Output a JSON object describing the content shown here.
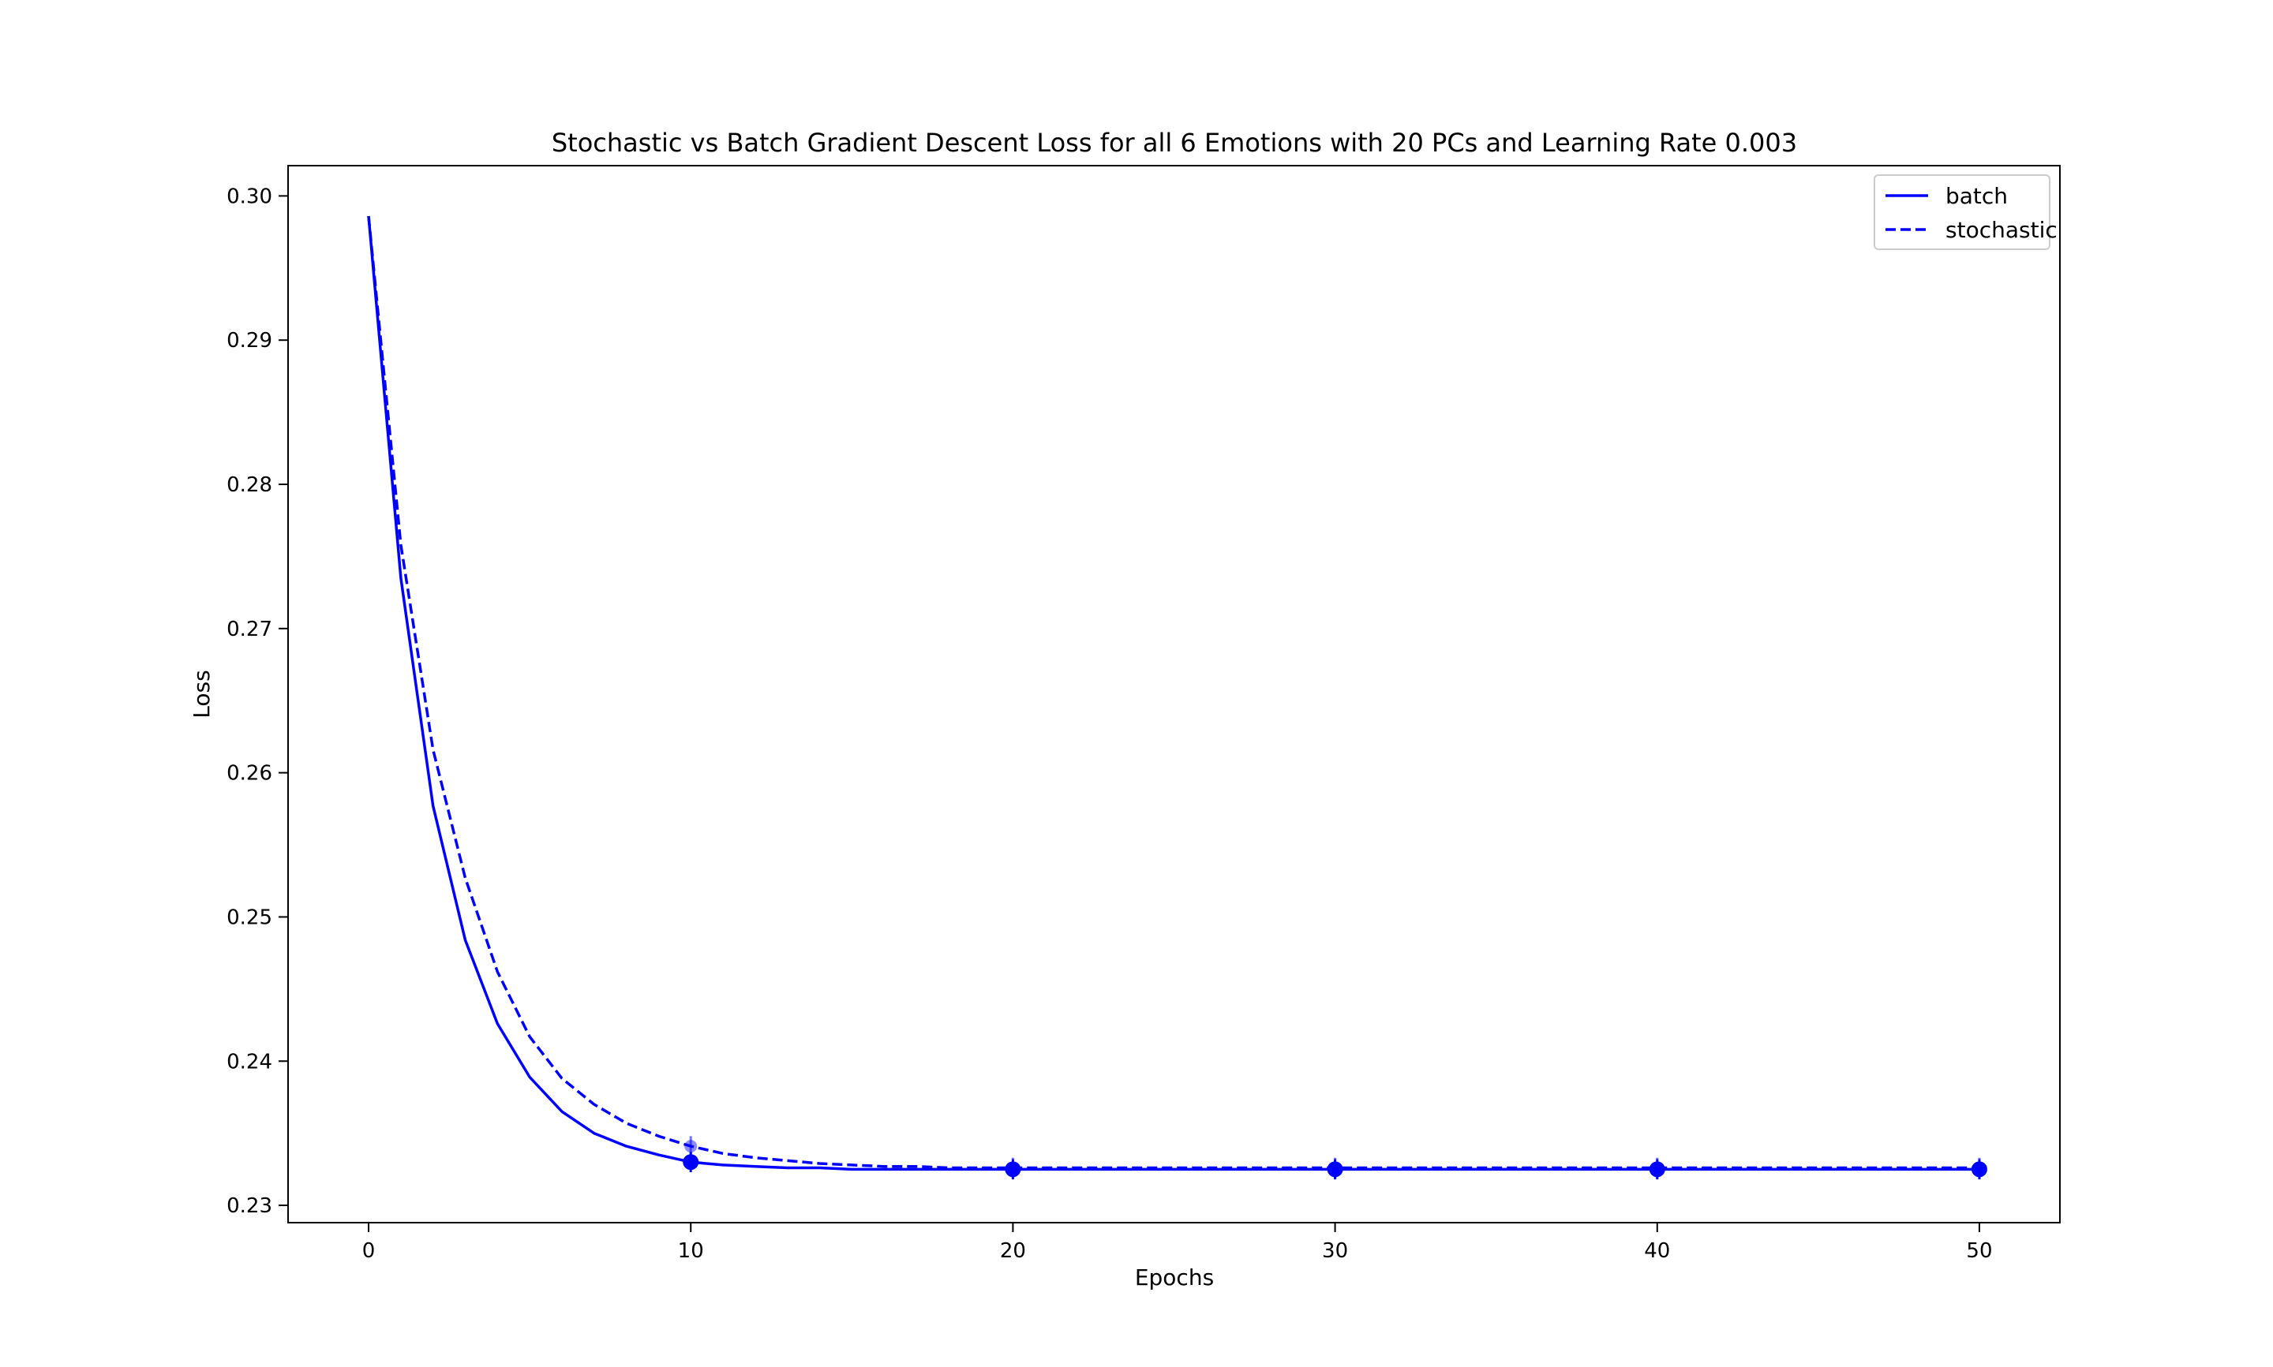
{
  "chart_data": {
    "type": "line",
    "title": "Stochastic vs Batch Gradient Descent Loss for all 6 Emotions with 20 PCs and Learning Rate 0.003",
    "xlabel": "Epochs",
    "ylabel": "Loss",
    "xlim": [
      -2.5,
      52.5
    ],
    "ylim": [
      0.2288,
      0.3021
    ],
    "xticks": [
      "0",
      "10",
      "20",
      "30",
      "40",
      "50"
    ],
    "yticks": [
      "0.23",
      "0.24",
      "0.25",
      "0.26",
      "0.27",
      "0.28",
      "0.29",
      "0.30"
    ],
    "grid": false,
    "legend_position": "top-right",
    "line_color": "#0000ff",
    "x": [
      0,
      1,
      2,
      3,
      4,
      5,
      6,
      7,
      8,
      9,
      10,
      11,
      12,
      13,
      14,
      15,
      16,
      17,
      18,
      19,
      20,
      21,
      22,
      23,
      24,
      25,
      26,
      27,
      28,
      29,
      30,
      31,
      32,
      33,
      34,
      35,
      36,
      37,
      38,
      39,
      40,
      41,
      42,
      43,
      44,
      45,
      46,
      47,
      48,
      49,
      50
    ],
    "series": [
      {
        "name": "batch",
        "style": "solid",
        "values": [
          0.2986,
          0.2735,
          0.2577,
          0.2484,
          0.2426,
          0.2389,
          0.2365,
          0.235,
          0.2341,
          0.2335,
          0.233,
          0.2328,
          0.2327,
          0.2326,
          0.2326,
          0.2325,
          0.2325,
          0.2325,
          0.2325,
          0.2325,
          0.2325,
          0.2325,
          0.2325,
          0.2325,
          0.2325,
          0.2325,
          0.2325,
          0.2325,
          0.2325,
          0.2325,
          0.2325,
          0.2325,
          0.2325,
          0.2325,
          0.2325,
          0.2325,
          0.2325,
          0.2325,
          0.2325,
          0.2325,
          0.2325,
          0.2325,
          0.2325,
          0.2325,
          0.2325,
          0.2325,
          0.2325,
          0.2325,
          0.2325,
          0.2325,
          0.2325
        ],
        "markers_at": [
          10,
          20,
          30,
          40,
          50
        ],
        "errors": [
          0.0007,
          0.0007,
          0.0007,
          0.0007,
          0.0007
        ]
      },
      {
        "name": "stochastic",
        "style": "dashed",
        "values": [
          0.2986,
          0.2758,
          0.2616,
          0.2527,
          0.2462,
          0.2417,
          0.2388,
          0.237,
          0.2357,
          0.2348,
          0.2341,
          0.2336,
          0.2333,
          0.2331,
          0.2329,
          0.2328,
          0.2327,
          0.2327,
          0.2326,
          0.2326,
          0.2326,
          0.2326,
          0.2326,
          0.2326,
          0.2326,
          0.2326,
          0.2326,
          0.2326,
          0.2326,
          0.2326,
          0.2326,
          0.2326,
          0.2326,
          0.2326,
          0.2326,
          0.2326,
          0.2326,
          0.2326,
          0.2326,
          0.2326,
          0.2326,
          0.2326,
          0.2326,
          0.2326,
          0.2326,
          0.2326,
          0.2326,
          0.2326,
          0.2326,
          0.2326,
          0.2326
        ],
        "markers_at": [
          10,
          20,
          30,
          40,
          50
        ],
        "errors": [
          0.0007,
          0.0007,
          0.0007,
          0.0007,
          0.0007
        ]
      }
    ]
  }
}
